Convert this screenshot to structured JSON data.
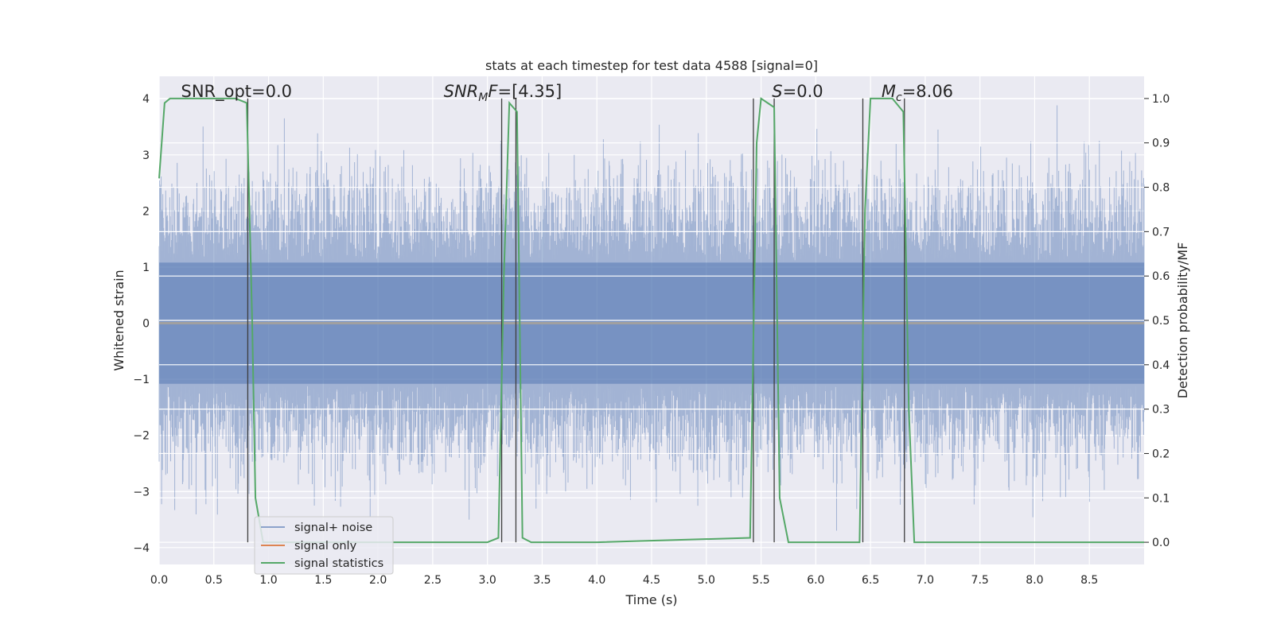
{
  "chart_data": {
    "type": "line",
    "title": "stats at each timestep for test data 4588 [signal=0]",
    "xlabel": "Time (s)",
    "ylabel": "Whitened strain",
    "ylabel_right": "Detection probability/MF",
    "xlim": [
      0,
      9.0
    ],
    "ylim": [
      -4.3,
      4.4
    ],
    "ylim_right": [
      -0.05,
      1.05
    ],
    "x_ticks": [
      "0.0",
      "0.5",
      "1.0",
      "1.5",
      "2.0",
      "2.5",
      "3.0",
      "3.5",
      "4.0",
      "4.5",
      "5.0",
      "5.5",
      "6.0",
      "6.5",
      "7.0",
      "7.5",
      "8.0",
      "8.5"
    ],
    "x_tick_values": [
      0,
      0.5,
      1,
      1.5,
      2,
      2.5,
      3,
      3.5,
      4,
      4.5,
      5,
      5.5,
      6,
      6.5,
      7,
      7.5,
      8,
      8.5
    ],
    "y_ticks": [
      "4",
      "3",
      "2",
      "1",
      "0",
      "−1",
      "−2",
      "−3",
      "−4"
    ],
    "y_tick_values": [
      4,
      3,
      2,
      1,
      0,
      -1,
      -2,
      -3,
      -4
    ],
    "y_right_ticks": [
      "1.0",
      "0.9",
      "0.8",
      "0.7",
      "0.6",
      "0.5",
      "0.4",
      "0.3",
      "0.2",
      "0.1",
      "0.0"
    ],
    "y_right_tick_values": [
      1.0,
      0.9,
      0.8,
      0.7,
      0.6,
      0.5,
      0.4,
      0.3,
      0.2,
      0.1,
      0.0
    ],
    "grid": true,
    "legend_position": "lower-left",
    "series": [
      {
        "name": "signal+ noise",
        "color": "#4c72b0",
        "axis": "left",
        "kind": "noise",
        "amplitude_band": [
          -2.4,
          2.4
        ],
        "peak_range": [
          -3.9,
          3.9
        ]
      },
      {
        "name": "signal only",
        "color": "#dd8452",
        "axis": "left",
        "kind": "flat",
        "values": [
          0,
          0
        ]
      },
      {
        "name": "signal statistics",
        "color": "#55a868",
        "axis": "right",
        "kind": "line",
        "x": [
          0,
          0.05,
          0.1,
          0.3,
          0.7,
          0.8,
          0.82,
          0.85,
          0.88,
          0.95,
          1.2,
          2.5,
          2.6,
          3.0,
          3.1,
          3.15,
          3.2,
          3.27,
          3.32,
          3.4,
          4.0,
          5.4,
          5.46,
          5.5,
          5.56,
          5.62,
          5.67,
          5.75,
          6.0,
          6.4,
          6.45,
          6.5,
          6.6,
          6.7,
          6.8,
          6.85,
          6.9,
          7.0,
          9.0
        ],
        "y": [
          0.82,
          0.99,
          1.0,
          1.0,
          1.0,
          0.99,
          0.8,
          0.5,
          0.1,
          0.0,
          0.0,
          0.0,
          0.0,
          0.0,
          0.01,
          0.6,
          0.99,
          0.97,
          0.01,
          0.0,
          0.0,
          0.01,
          0.9,
          1.0,
          0.99,
          0.98,
          0.1,
          0.0,
          0.0,
          0.0,
          0.75,
          1.0,
          1.0,
          1.0,
          0.97,
          0.3,
          0.0,
          0.0,
          0.0
        ]
      }
    ],
    "vertical_lines": {
      "color": "#3d3d3d",
      "x": [
        0.81,
        3.13,
        3.26,
        5.43,
        5.62,
        6.43,
        6.81
      ]
    },
    "annotations": [
      {
        "text": "SNR_opt=0.0",
        "x": 0.2
      },
      {
        "text": "SNR_MF=[4.35]",
        "x": 2.6,
        "parts": [
          {
            "t": "SNR",
            "style": "italic"
          },
          {
            "t": "M",
            "style": "sub"
          },
          {
            "t": "F=[4.35]",
            "style": "italic-start"
          }
        ]
      },
      {
        "text": "S=0.0",
        "x": 5.6,
        "parts": [
          {
            "t": "S",
            "style": "italic"
          },
          {
            "t": "=0.0",
            "style": "normal"
          }
        ]
      },
      {
        "text": "M_c=8.06",
        "x": 6.6,
        "parts": [
          {
            "t": "M",
            "style": "italic"
          },
          {
            "t": "c",
            "style": "sub"
          },
          {
            "t": "=8.06",
            "style": "normal"
          }
        ]
      }
    ],
    "colors": {
      "plot_bg": "#eaeaf2",
      "grid": "#ffffff",
      "text": "#262626"
    }
  }
}
